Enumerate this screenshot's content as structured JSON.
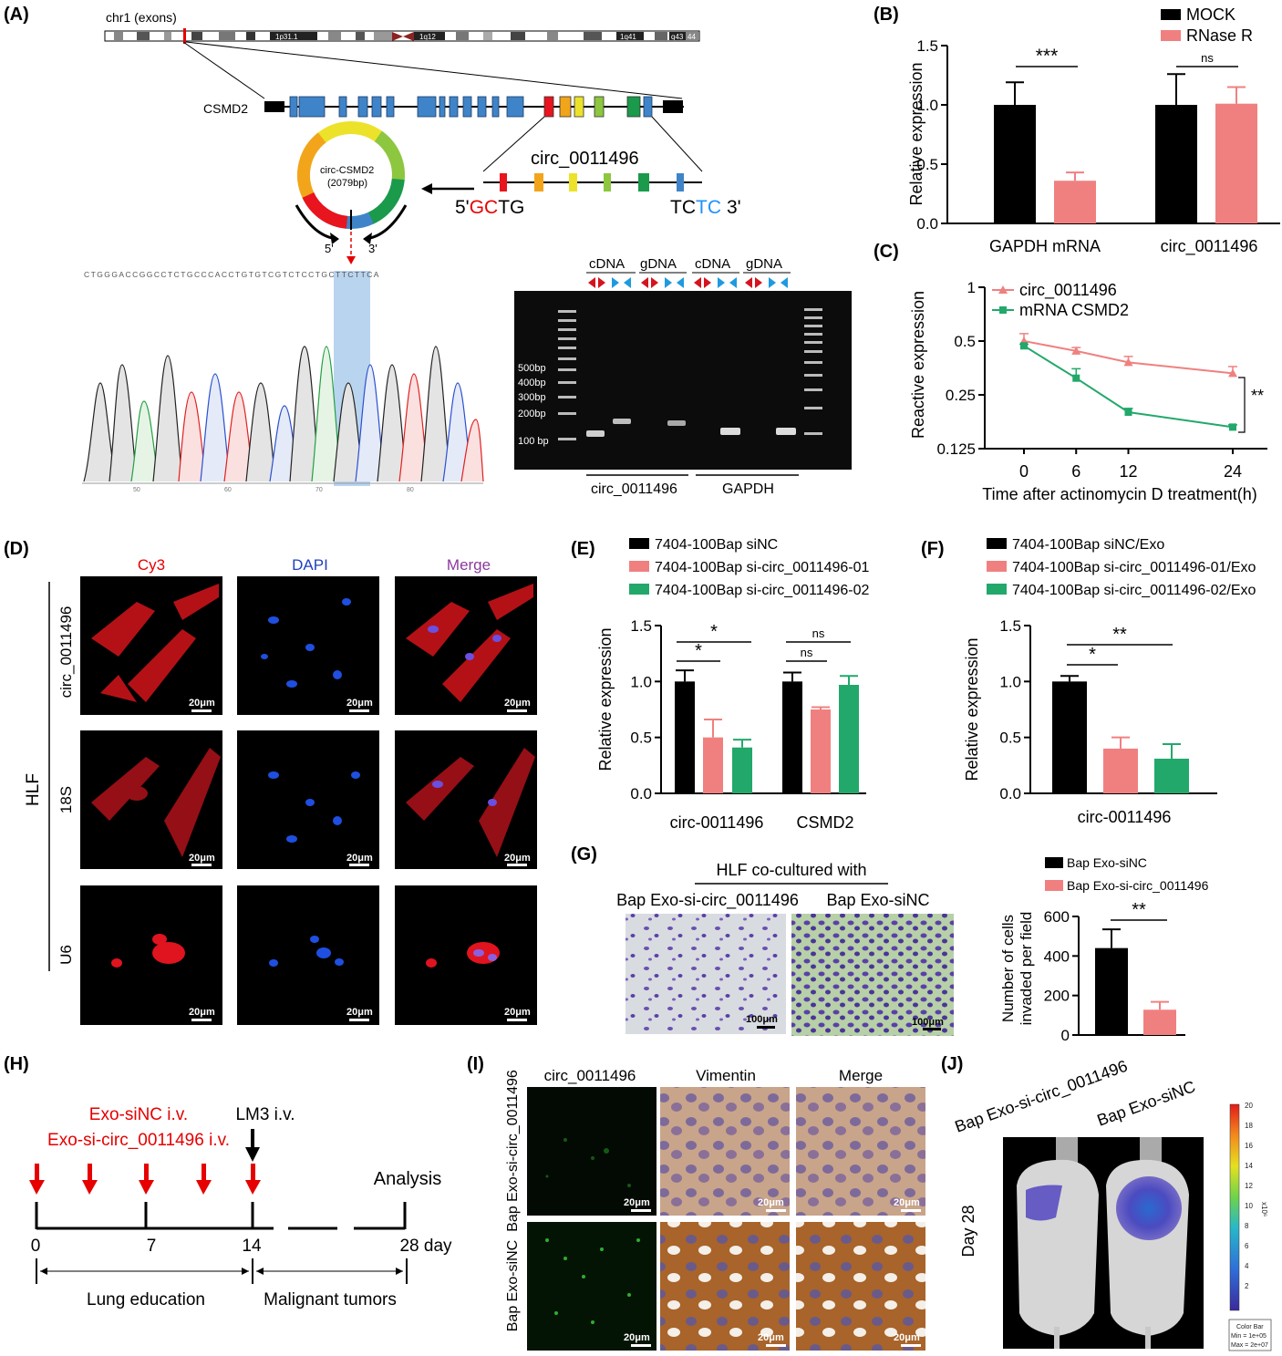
{
  "panels": {
    "a": "(A)",
    "b": "(B)",
    "c": "(C)",
    "d": "(D)",
    "e": "(E)",
    "f": "(F)",
    "g": "(G)",
    "h": "(H)",
    "i": "(I)",
    "j": "(J)"
  },
  "colors": {
    "black": "#000000",
    "pink": "#f08080",
    "green": "#22a86a",
    "red": "#e60000",
    "blue": "#1e90ff"
  },
  "panel_a": {
    "chrom_title": "chr1 (exons)",
    "bands": [
      "1p31.1",
      "1q12",
      "1q41",
      "q43",
      "44"
    ],
    "gene": "CSMD2",
    "circ_title": "circ_0011496",
    "circle_label_1": "circ-CSMD2",
    "circle_label_2": "(2079bp)",
    "left_end_prefix": "5'",
    "left_end_red": "GC",
    "left_end_black": "TG",
    "right_end_black": "TC",
    "right_end_blue": "TC",
    "right_end_suffix": "3'",
    "five": "5'",
    "three": "3'",
    "sequence": "CTGGGACCGGCCTCTGCCCACCTGTGTCGTCTCCTGCTTCTTCA",
    "seq_ticks": [
      "50",
      "60",
      "70",
      "80"
    ],
    "gel_top_labels": [
      "cDNA",
      "gDNA",
      "cDNA",
      "gDNA"
    ],
    "ladder": [
      "500bp",
      "400bp",
      "300bp",
      "200bp",
      "100 bp"
    ],
    "gel_bottom": [
      "circ_0011496",
      "GAPDH"
    ]
  },
  "chart_data": [
    {
      "id": "B",
      "type": "bar",
      "categories": [
        "GAPDH mRNA",
        "circ_0011496"
      ],
      "series": [
        {
          "name": "MOCK",
          "values": [
            1.0,
            1.0
          ],
          "err": [
            0.19,
            0.26
          ]
        },
        {
          "name": "RNase R",
          "values": [
            0.36,
            1.01
          ],
          "err": [
            0.07,
            0.14
          ]
        }
      ],
      "ylabel": "Relative expression",
      "ylim": [
        0,
        1.5
      ],
      "yticks": [
        "0.0",
        "0.5",
        "1.0",
        "1.5"
      ],
      "significance": [
        "***",
        "ns"
      ],
      "legend": "top-right"
    },
    {
      "id": "C",
      "type": "line",
      "x": [
        0,
        6,
        12,
        24
      ],
      "xticks": [
        "0",
        "6",
        "12",
        "24"
      ],
      "series": [
        {
          "name": "circ_0011496",
          "values": [
            0.5,
            0.44,
            0.38,
            0.33
          ]
        },
        {
          "name": "mRNA CSMD2",
          "values": [
            0.47,
            0.31,
            0.2,
            0.165
          ]
        }
      ],
      "ylabel": "Reactive expression",
      "xlabel": "Time after actinomycin D treatment(h)",
      "yscale": "log2",
      "yticks": [
        "0.125",
        "0.25",
        "0.5",
        "1"
      ],
      "significance": "**",
      "legend": "top-left"
    },
    {
      "id": "E",
      "type": "bar",
      "categories": [
        "circ-0011496",
        "CSMD2"
      ],
      "series": [
        {
          "name": "7404-100Bap siNC",
          "values": [
            1.0,
            1.0
          ],
          "err": [
            0.1,
            0.08
          ]
        },
        {
          "name": "7404-100Bap si-circ_0011496-01",
          "values": [
            0.5,
            0.75
          ],
          "err": [
            0.16,
            0.02
          ]
        },
        {
          "name": "7404-100Bap si-circ_0011496-02",
          "values": [
            0.41,
            0.97
          ],
          "err": [
            0.07,
            0.08
          ]
        }
      ],
      "ylabel": "Relative  expression",
      "ylim": [
        0,
        1.5
      ],
      "yticks": [
        "0.0",
        "0.5",
        "1.0",
        "1.5"
      ],
      "significance": [
        "*",
        "*",
        "ns",
        "ns"
      ],
      "legend": "top"
    },
    {
      "id": "F",
      "type": "bar",
      "categories": [
        "circ-0011496"
      ],
      "series": [
        {
          "name": "7404-100Bap siNC/Exo",
          "values": [
            1.0
          ],
          "err": [
            0.05
          ]
        },
        {
          "name": "7404-100Bap si-circ_0011496-01/Exo",
          "values": [
            0.4
          ],
          "err": [
            0.1
          ]
        },
        {
          "name": "7404-100Bap si-circ_0011496-02/Exo",
          "values": [
            0.31
          ],
          "err": [
            0.13
          ]
        }
      ],
      "ylabel": "Relative expression",
      "ylim": [
        0,
        1.5
      ],
      "yticks": [
        "0.0",
        "0.5",
        "1.0",
        "1.5"
      ],
      "significance": [
        "*",
        "**"
      ],
      "legend": "top"
    },
    {
      "id": "G",
      "type": "bar",
      "categories": [
        "Bap Exo-siNC",
        "Bap Exo-si-circ_0011496"
      ],
      "values": [
        440,
        128
      ],
      "err": [
        95,
        40
      ],
      "ylabel_1": "Number of cells",
      "ylabel_2": "invaded per field",
      "ylim": [
        0,
        600
      ],
      "yticks": [
        "0",
        "200",
        "400",
        "600"
      ],
      "significance": "**",
      "legend": "top"
    }
  ],
  "panel_d": {
    "cols": [
      "Cy3",
      "DAPI",
      "Merge"
    ],
    "rows": [
      "circ_0011496",
      "18S",
      "U6"
    ],
    "side": "HLF",
    "scale": "20μm"
  },
  "panel_g": {
    "title": "HLF co-cultured with",
    "left": "Bap Exo-si-circ_0011496",
    "right": "Bap Exo-siNC",
    "scale": "100μm"
  },
  "panel_h": {
    "red_1": "Exo-siNC i.v.",
    "red_2": "Exo-si-circ_0011496 i.v.",
    "lm3": "LM3 i.v.",
    "analysis": "Analysis",
    "days": [
      "0",
      "7",
      "14",
      "28 day"
    ],
    "phase_1": "Lung education",
    "phase_2": "Malignant tumors"
  },
  "panel_i": {
    "cols": [
      "circ_0011496",
      "Vimentin",
      "Merge"
    ],
    "rows": [
      "Bap Exo-si-circ_0011496",
      "Bap Exo-siNC"
    ],
    "scale": "20μm"
  },
  "panel_j": {
    "left": "Bap Exo-si-circ_0011496",
    "right": "Bap Exo-siNC",
    "day": "Day 28",
    "cbar_ticks": [
      "20",
      "18",
      "16",
      "14",
      "12",
      "10",
      "8",
      "6",
      "4",
      "2"
    ],
    "cbar_unit": "x10⁶",
    "cbar_title": "Color Bar",
    "cbar_min": "Min = 1e+05",
    "cbar_max": "Max = 2e+07"
  }
}
